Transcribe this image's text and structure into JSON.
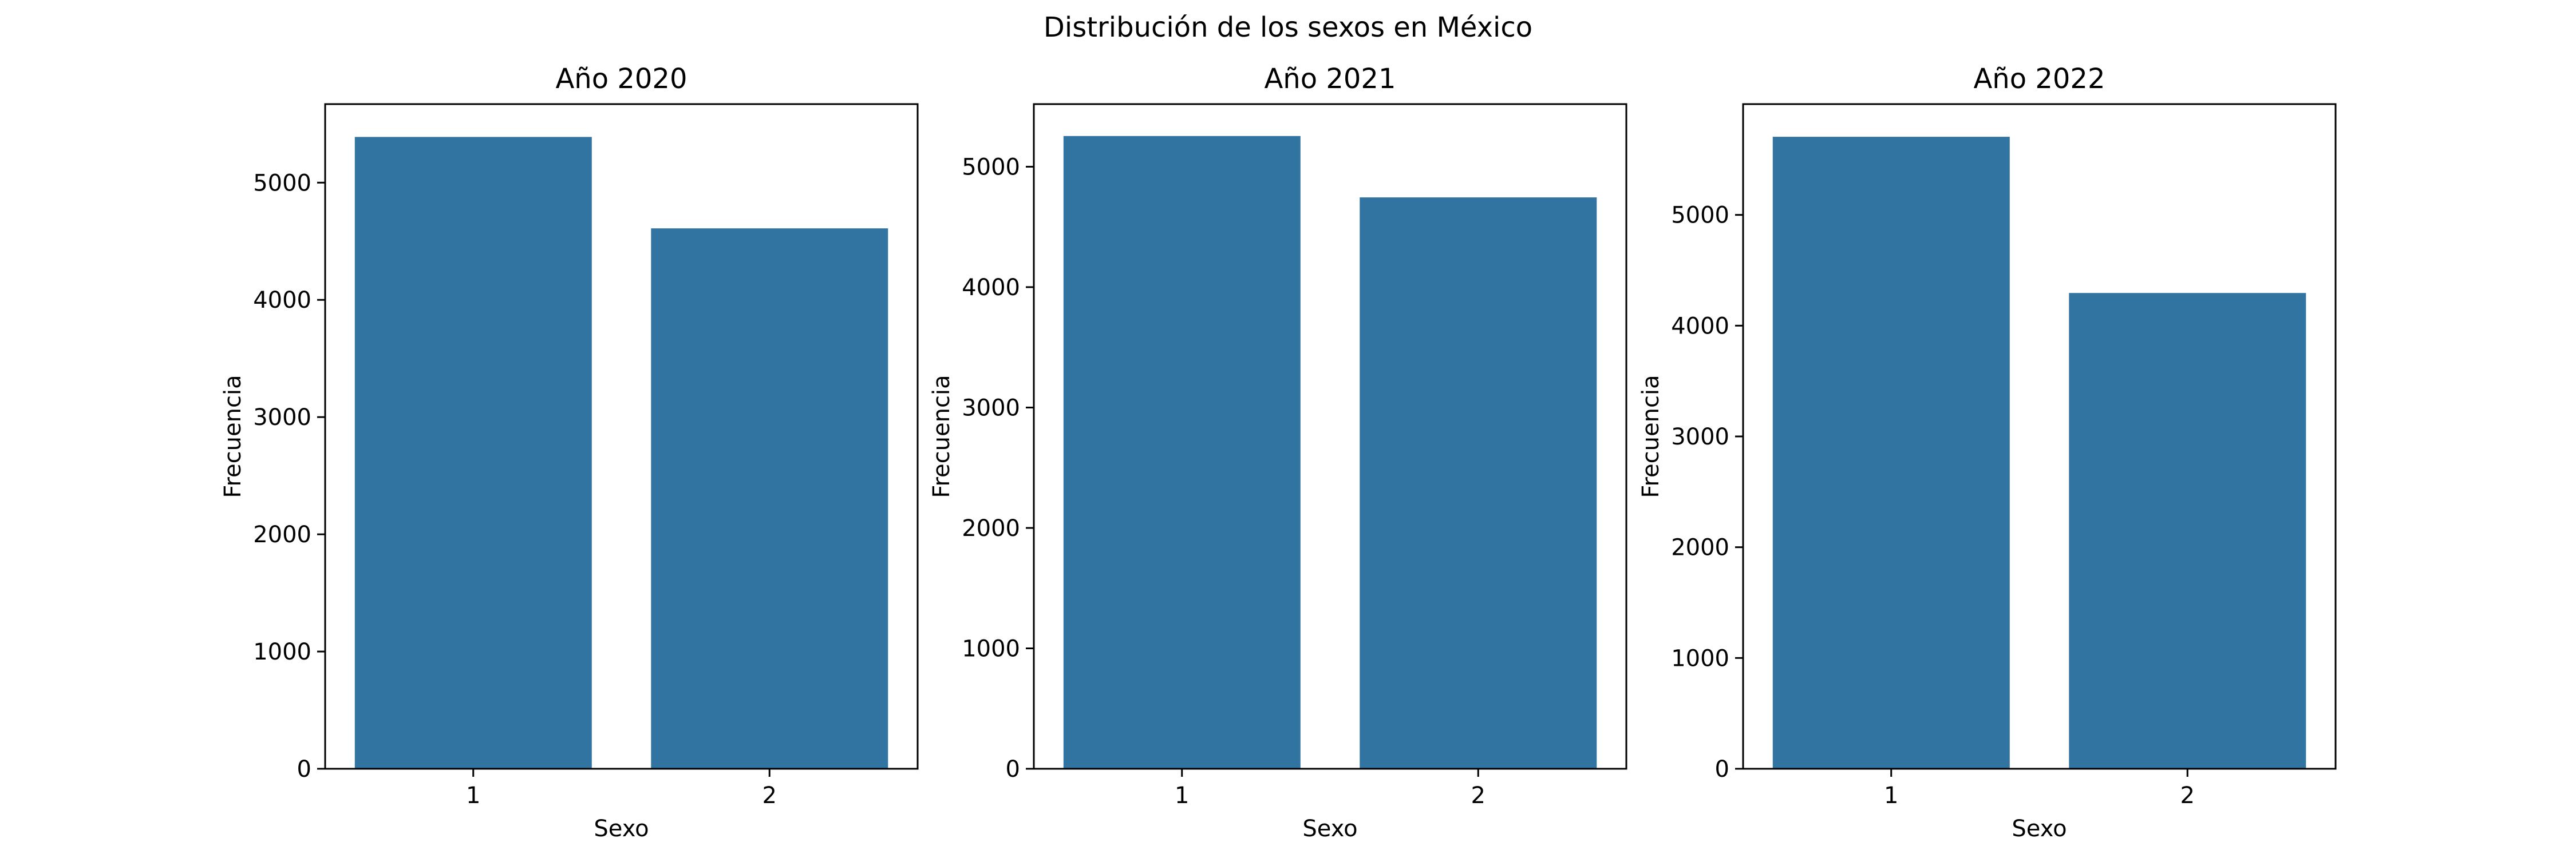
{
  "figure": {
    "suptitle": "Distribución de los sexos en México",
    "bar_color": "#3274a1"
  },
  "chart_data": [
    {
      "type": "bar",
      "title": "Año 2020",
      "xlabel": "Sexo",
      "ylabel": "Frecuencia",
      "categories": [
        "1",
        "2"
      ],
      "values": [
        5390,
        4610
      ],
      "ylim": [
        0,
        5670
      ],
      "yticks": [
        0,
        1000,
        2000,
        3000,
        4000,
        5000
      ],
      "grid": false
    },
    {
      "type": "bar",
      "title": "Año 2021",
      "xlabel": "Sexo",
      "ylabel": "Frecuencia",
      "categories": [
        "1",
        "2"
      ],
      "values": [
        5255,
        4745
      ],
      "ylim": [
        0,
        5520
      ],
      "yticks": [
        0,
        1000,
        2000,
        3000,
        4000,
        5000
      ],
      "grid": false
    },
    {
      "type": "bar",
      "title": "Año 2022",
      "xlabel": "Sexo",
      "ylabel": "Frecuencia",
      "categories": [
        "1",
        "2"
      ],
      "values": [
        5705,
        4295
      ],
      "ylim": [
        0,
        6000
      ],
      "yticks": [
        0,
        1000,
        2000,
        3000,
        4000,
        5000
      ],
      "grid": false
    }
  ]
}
